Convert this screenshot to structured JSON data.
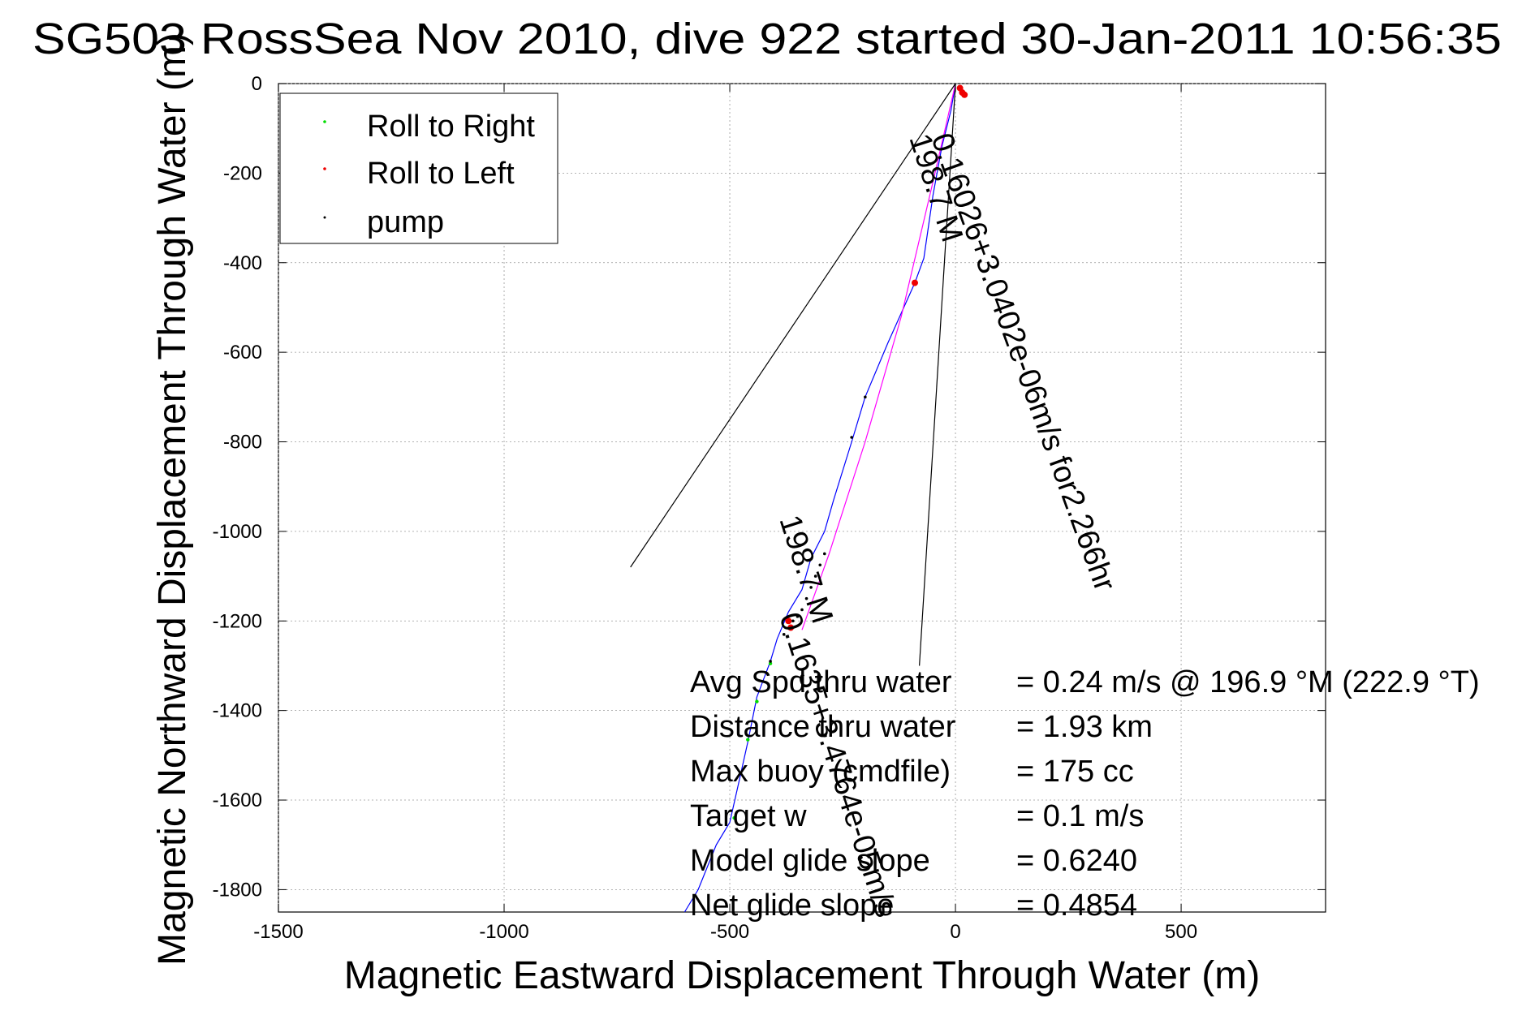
{
  "chart_data": {
    "type": "line",
    "title": "SG503 RossSea Nov 2010, dive 922 started 30-Jan-2011 10:56:35",
    "xlabel": "Magnetic Eastward Displacement Through Water (m)",
    "ylabel": "Magnetic Northward Displacement Through Water (m)",
    "xlim": [
      -1500,
      820
    ],
    "ylim": [
      -1850,
      0
    ],
    "xticks": [
      -1500,
      -1000,
      -500,
      0,
      500
    ],
    "yticks": [
      0,
      -200,
      -400,
      -600,
      -800,
      -1000,
      -1200,
      -1400,
      -1600,
      -1800
    ],
    "grid": true,
    "legend_position": "top-left",
    "legend": [
      {
        "label": "Roll to Right",
        "color": "#00dd00"
      },
      {
        "label": "Roll to Left",
        "color": "#ee0000"
      },
      {
        "label": "pump",
        "color": "#000000"
      }
    ],
    "series": [
      {
        "color": "#0000ff",
        "points": [
          [
            0,
            0
          ],
          [
            -10,
            -60
          ],
          [
            -30,
            -140
          ],
          [
            -50,
            -250
          ],
          [
            -70,
            -390
          ],
          [
            -90,
            -445
          ],
          [
            -150,
            -580
          ],
          [
            -200,
            -700
          ],
          [
            -230,
            -800
          ],
          [
            -270,
            -930
          ],
          [
            -290,
            -1000
          ],
          [
            -320,
            -1060
          ],
          [
            -340,
            -1130
          ],
          [
            -370,
            -1180
          ],
          [
            -395,
            -1240
          ],
          [
            -410,
            -1290
          ],
          [
            -440,
            -1370
          ],
          [
            -460,
            -1470
          ],
          [
            -480,
            -1560
          ],
          [
            -500,
            -1650
          ],
          [
            -530,
            -1700
          ],
          [
            -570,
            -1800
          ],
          [
            -600,
            -1850
          ]
        ]
      },
      {
        "color": "#ff00ff",
        "points": [
          [
            0,
            0
          ],
          [
            -50,
            -220
          ],
          [
            -120,
            -520
          ],
          [
            -200,
            -800
          ],
          [
            -280,
            -1050
          ],
          [
            -340,
            -1220
          ]
        ]
      },
      {
        "color": "#000000",
        "points": [
          [
            0,
            0
          ],
          [
            -720,
            -1080
          ]
        ]
      },
      {
        "color": "#000000",
        "points": [
          [
            0,
            0
          ],
          [
            -80,
            -1300
          ]
        ]
      }
    ],
    "markers": [
      {
        "type": "Roll to Left",
        "x": 10,
        "y": -10
      },
      {
        "type": "Roll to Left",
        "x": 15,
        "y": -20
      },
      {
        "type": "Roll to Left",
        "x": 20,
        "y": -25
      },
      {
        "type": "Roll to Left",
        "x": -90,
        "y": -445
      },
      {
        "type": "Roll to Left",
        "x": -370,
        "y": -1200
      },
      {
        "type": "Roll to Left",
        "x": -365,
        "y": -1215
      },
      {
        "type": "Roll to Right",
        "x": -410,
        "y": -1295
      },
      {
        "type": "Roll to Right",
        "x": -440,
        "y": -1380
      },
      {
        "type": "Roll to Right",
        "x": -460,
        "y": -1465
      },
      {
        "type": "Roll to Right",
        "x": -490,
        "y": -1640
      },
      {
        "type": "pump",
        "x": -290,
        "y": -1050
      },
      {
        "type": "pump",
        "x": -300,
        "y": -1075
      },
      {
        "type": "pump",
        "x": -310,
        "y": -1100
      },
      {
        "type": "pump",
        "x": -320,
        "y": -1125
      },
      {
        "type": "pump",
        "x": -330,
        "y": -1150
      },
      {
        "type": "pump",
        "x": -340,
        "y": -1175
      },
      {
        "type": "pump",
        "x": -350,
        "y": -1190
      },
      {
        "type": "pump",
        "x": -360,
        "y": -1200
      },
      {
        "type": "pump",
        "x": -380,
        "y": -1230
      },
      {
        "type": "pump",
        "x": -410,
        "y": -1290
      },
      {
        "type": "pump",
        "x": -230,
        "y": -790
      },
      {
        "type": "pump",
        "x": -200,
        "y": -700
      }
    ],
    "annotations": {
      "current_upper": "0.16026+3.0402e-06m/s for2.266hr",
      "heading_upper": "198.7 M",
      "current_lower": "0.1635+3.4764e-05m/s",
      "heading_lower": "198.7 M"
    },
    "stats": [
      {
        "label": "Avg Spd thru water",
        "value": "=  0.24 m/s @ 196.9 °M (222.9 °T)"
      },
      {
        "label": "Distance thru water",
        "value": "=  1.93 km"
      },
      {
        "label": "Max buoy (cmdfile)",
        "value": "= 175 cc"
      },
      {
        "label": "Target w",
        "value": "= 0.1 m/s"
      },
      {
        "label": "Model glide slope",
        "value": "= 0.6240"
      },
      {
        "label": "Net glide slope",
        "value": "= 0.4854"
      }
    ]
  }
}
